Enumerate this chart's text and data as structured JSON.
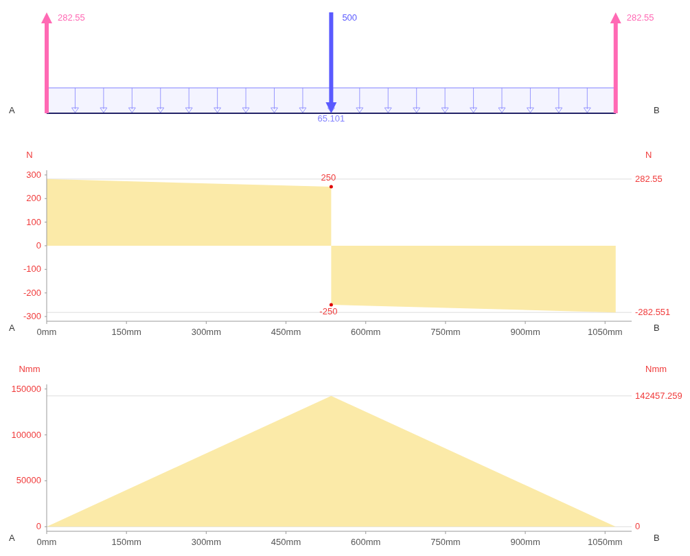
{
  "chart_data": [
    {
      "type": "other",
      "annotations": [
        "A",
        "B",
        "65.101",
        "282.55",
        "500",
        "282.55"
      ]
    },
    {
      "type": "area",
      "xlim": [
        0,
        1100
      ],
      "ylim": [
        -320,
        320
      ],
      "yticks": [
        -300,
        -200,
        -100,
        0,
        100,
        200,
        300
      ],
      "xticks": [
        {
          "value": 0,
          "label": "0mm"
        },
        {
          "value": 150,
          "label": "150mm"
        },
        {
          "value": 300,
          "label": "300mm"
        },
        {
          "value": 450,
          "label": "450mm"
        },
        {
          "value": 600,
          "label": "600mm"
        },
        {
          "value": 750,
          "label": "750mm"
        },
        {
          "value": 900,
          "label": "900mm"
        },
        {
          "value": 1050,
          "label": "1050mm"
        }
      ],
      "ylabel": "N",
      "series": [
        {
          "color": "#fbeaa8",
          "x": [
            0,
            535
          ],
          "values": [
            282.55,
            250
          ],
          "value_labels": [
            null,
            "250"
          ]
        },
        {
          "color": "#fbeaa8",
          "x": [
            535,
            1070
          ],
          "values": [
            -250,
            -282.551
          ],
          "value_labels": [
            "-250",
            null
          ]
        }
      ],
      "ref_lines": [
        {
          "axis": "y",
          "value": 282.55,
          "label": "282.55"
        },
        {
          "axis": "y",
          "value": -282.551,
          "label": "-282.551"
        }
      ],
      "annotations": [
        "A",
        "B",
        "N"
      ]
    },
    {
      "type": "area",
      "x": [
        0,
        535,
        1070
      ],
      "xlim": [
        0,
        1100
      ],
      "ylim": [
        -5000,
        155000
      ],
      "yticks": [
        0,
        50000,
        100000,
        150000
      ],
      "xticks": [
        {
          "value": 0,
          "label": "0mm"
        },
        {
          "value": 150,
          "label": "150mm"
        },
        {
          "value": 300,
          "label": "300mm"
        },
        {
          "value": 450,
          "label": "450mm"
        },
        {
          "value": 600,
          "label": "600mm"
        },
        {
          "value": 750,
          "label": "750mm"
        },
        {
          "value": 900,
          "label": "900mm"
        },
        {
          "value": 1050,
          "label": "1050mm"
        }
      ],
      "ylabel": "Nmm",
      "series": [
        {
          "color": "#fbeaa8",
          "values": [
            0,
            142457.259,
            0
          ]
        }
      ],
      "ref_lines": [
        {
          "axis": "y",
          "value": 142457.259,
          "label": "142457.259"
        },
        {
          "axis": "y",
          "value": 0,
          "label": "0"
        }
      ],
      "annotations": [
        "A",
        "B",
        "Nmm"
      ]
    }
  ]
}
